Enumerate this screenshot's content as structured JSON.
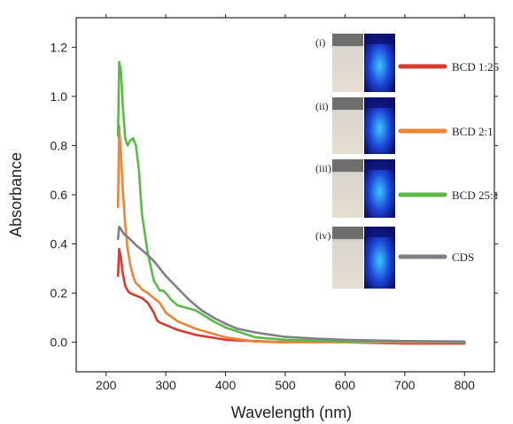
{
  "chart_data": {
    "type": "line",
    "xlabel": "Wavelength (nm)",
    "ylabel": "Absorbance",
    "xlim": [
      150,
      850
    ],
    "ylim": [
      -0.12,
      1.32
    ],
    "xticks": [
      200,
      300,
      400,
      500,
      600,
      700,
      800
    ],
    "yticks": [
      0.0,
      0.2,
      0.4,
      0.6,
      0.8,
      1.0,
      1.2
    ],
    "grid": false,
    "legend_position": "right",
    "series": [
      {
        "name": "BCD 1:25",
        "color": "#d73a31",
        "x": [
          220,
          222,
          225,
          228,
          232,
          236,
          240,
          245,
          250,
          255,
          260,
          265,
          270,
          275,
          280,
          285,
          290,
          300,
          320,
          350,
          400,
          450,
          500,
          600,
          700,
          800
        ],
        "y": [
          0.27,
          0.38,
          0.34,
          0.28,
          0.23,
          0.21,
          0.2,
          0.195,
          0.19,
          0.185,
          0.18,
          0.17,
          0.16,
          0.14,
          0.12,
          0.09,
          0.08,
          0.07,
          0.05,
          0.03,
          0.01,
          0.005,
          0.0,
          0.0,
          -0.005,
          -0.005
        ]
      },
      {
        "name": "BCD 2:1",
        "color": "#ee8438",
        "x": [
          220,
          222,
          225,
          228,
          232,
          236,
          240,
          245,
          250,
          255,
          260,
          270,
          280,
          290,
          300,
          320,
          350,
          400,
          450,
          500,
          600,
          700,
          800
        ],
        "y": [
          0.55,
          0.88,
          0.76,
          0.62,
          0.48,
          0.38,
          0.32,
          0.27,
          0.24,
          0.23,
          0.215,
          0.2,
          0.18,
          0.16,
          0.12,
          0.085,
          0.055,
          0.02,
          0.003,
          0.0,
          0.0,
          0.0,
          0.0
        ]
      },
      {
        "name": "BCD 25:1",
        "color": "#5cb947",
        "x": [
          220,
          222,
          225,
          228,
          232,
          236,
          240,
          245,
          250,
          255,
          260,
          270,
          280,
          290,
          295,
          300,
          310,
          320,
          350,
          380,
          400,
          450,
          500,
          600,
          700,
          800
        ],
        "y": [
          0.84,
          1.14,
          1.1,
          0.96,
          0.83,
          0.8,
          0.82,
          0.83,
          0.8,
          0.7,
          0.52,
          0.36,
          0.25,
          0.21,
          0.21,
          0.2,
          0.17,
          0.15,
          0.13,
          0.085,
          0.06,
          0.02,
          0.01,
          0.003,
          0.005,
          0.0
        ]
      },
      {
        "name": "CDS",
        "color": "#7f7f85",
        "x": [
          220,
          222,
          225,
          230,
          240,
          250,
          260,
          270,
          280,
          290,
          300,
          320,
          340,
          360,
          380,
          400,
          420,
          450,
          500,
          550,
          600,
          700,
          800
        ],
        "y": [
          0.42,
          0.47,
          0.46,
          0.44,
          0.42,
          0.395,
          0.375,
          0.355,
          0.33,
          0.3,
          0.27,
          0.22,
          0.17,
          0.13,
          0.1,
          0.075,
          0.055,
          0.04,
          0.022,
          0.015,
          0.01,
          0.005,
          0.003
        ]
      }
    ],
    "insets": [
      {
        "label": "(i)"
      },
      {
        "label": "(ii)"
      },
      {
        "label": "(iii)"
      },
      {
        "label": "(iv)"
      }
    ]
  }
}
